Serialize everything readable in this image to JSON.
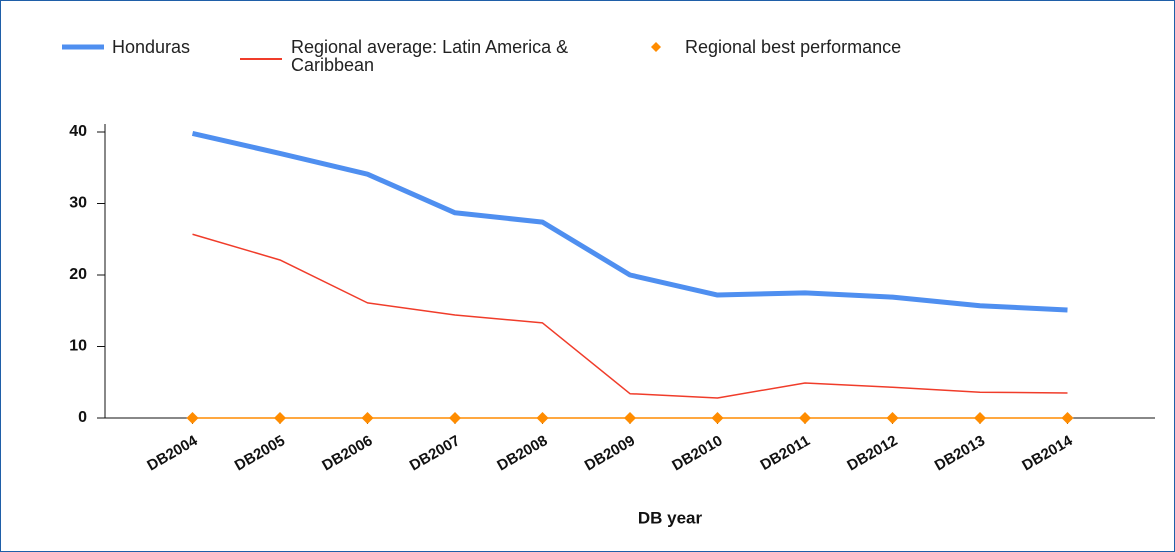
{
  "chart_data": {
    "type": "line",
    "categories": [
      "DB2004",
      "DB2005",
      "DB2006",
      "DB2007",
      "DB2008",
      "DB2009",
      "DB2010",
      "DB2011",
      "DB2012",
      "DB2013",
      "DB2014"
    ],
    "series": [
      {
        "name": "Honduras",
        "color": "#4f8ff0",
        "values": [
          39.8,
          37.0,
          34.1,
          28.7,
          27.4,
          20.0,
          17.2,
          17.5,
          16.9,
          15.7,
          15.1
        ]
      },
      {
        "name": "Regional average: Latin America & Caribbean",
        "color": "#f03c2a",
        "values": [
          25.7,
          22.1,
          16.1,
          14.4,
          13.3,
          3.4,
          2.8,
          4.9,
          4.3,
          3.6,
          3.5
        ]
      },
      {
        "name": "Regional best performance",
        "color": "#ff8c00",
        "marker": "diamond",
        "values": [
          0,
          0,
          0,
          0,
          0,
          0,
          0,
          0,
          0,
          0,
          0
        ]
      }
    ],
    "xlabel": "DB year",
    "ylim": [
      0,
      40
    ],
    "yticks": [
      0,
      10,
      20,
      30,
      40
    ],
    "grid": false,
    "legend": "top"
  }
}
